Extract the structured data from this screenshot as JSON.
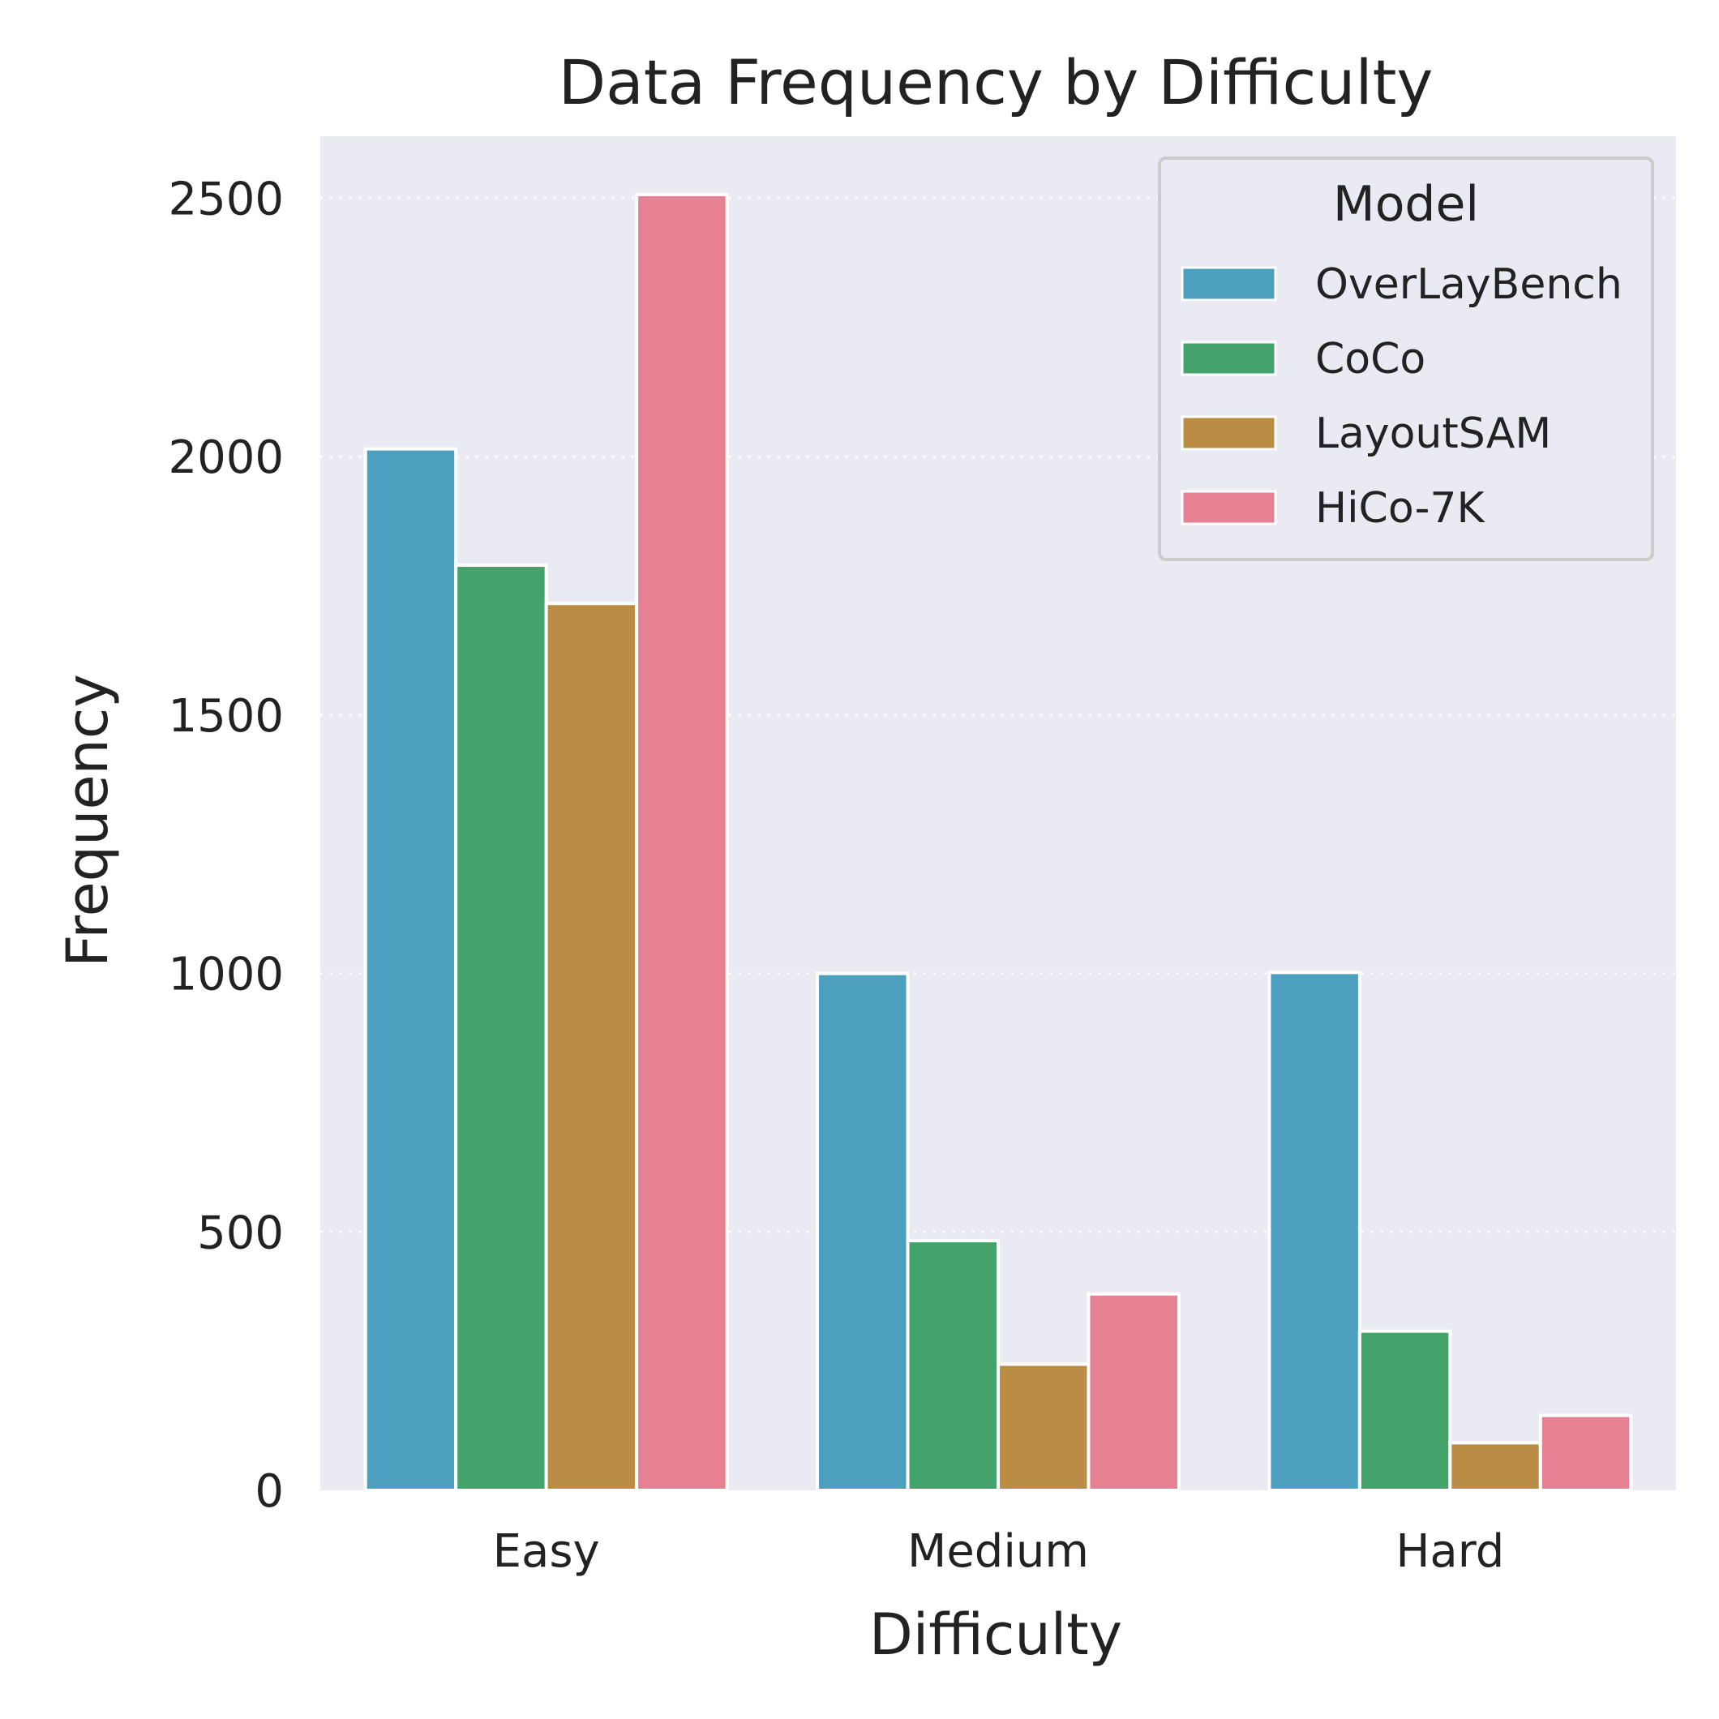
{
  "chart_data": {
    "type": "bar",
    "title": "Data Frequency by Difficulty",
    "xlabel": "Difficulty",
    "ylabel": "Frequency",
    "categories": [
      "Easy",
      "Medium",
      "Hard"
    ],
    "ylim": [
      0,
      2620
    ],
    "yticks": [
      0,
      500,
      1000,
      1500,
      2000,
      2500
    ],
    "grid": true,
    "legend": {
      "title": "Model",
      "placement": "top-right"
    },
    "series": [
      {
        "name": "OverLayBench",
        "color": "#4c9fbf",
        "values": [
          2015,
          1000,
          1002
        ]
      },
      {
        "name": "CoCo",
        "color": "#44a36a",
        "values": [
          1790,
          483,
          308
        ]
      },
      {
        "name": "LayoutSAM",
        "color": "#bb8c45",
        "values": [
          1716,
          244,
          92
        ]
      },
      {
        "name": "HiCo-7K",
        "color": "#e68193",
        "values": [
          2507,
          380,
          145
        ]
      }
    ]
  },
  "style": {
    "background": "#ffffff",
    "plot_background": "#eaeaf2",
    "grid_color": "#ffffff",
    "text_color": "#222222",
    "legend_border": "#cccccc"
  }
}
